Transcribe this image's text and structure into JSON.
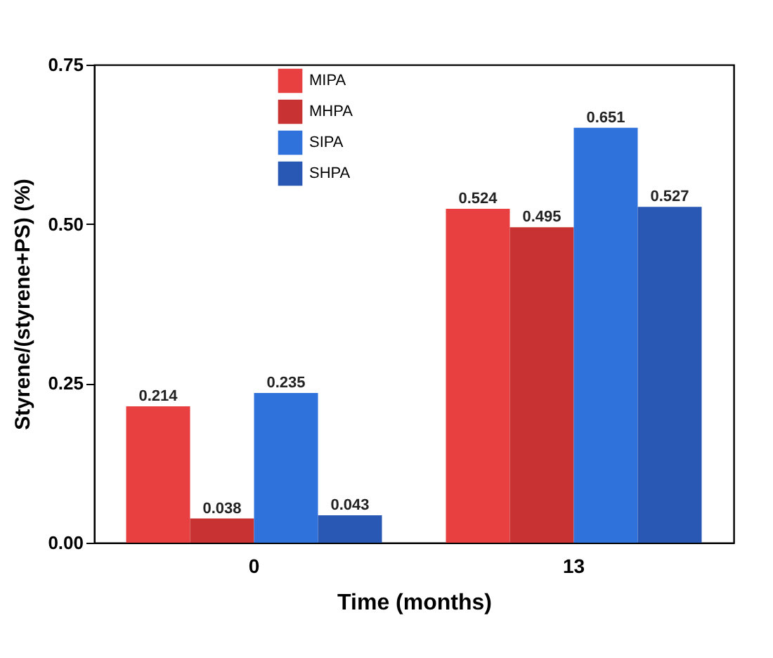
{
  "chart_data": {
    "type": "bar",
    "xlabel": "Time (months)",
    "ylabel": "Styrene/(styrene+PS) (%)",
    "categories": [
      "0",
      "13"
    ],
    "series": [
      {
        "name": "MIPA",
        "color": "#e84040",
        "values": [
          0.214,
          0.524
        ]
      },
      {
        "name": "MHPA",
        "color": "#c83232",
        "values": [
          0.038,
          0.495
        ]
      },
      {
        "name": "SIPA",
        "color": "#2f72dc",
        "values": [
          0.235,
          0.651
        ]
      },
      {
        "name": "SHPA",
        "color": "#2858b4",
        "values": [
          0.043,
          0.527
        ]
      }
    ],
    "ylim": [
      0,
      0.75
    ],
    "yticks": [
      {
        "value": 0,
        "label": "0.00"
      },
      {
        "value": 0.25,
        "label": "0.25"
      },
      {
        "value": 0.5,
        "label": "0.50"
      },
      {
        "value": 0.75,
        "label": "0.75"
      }
    ],
    "data_labels": true,
    "legend": "top",
    "grid": false
  }
}
